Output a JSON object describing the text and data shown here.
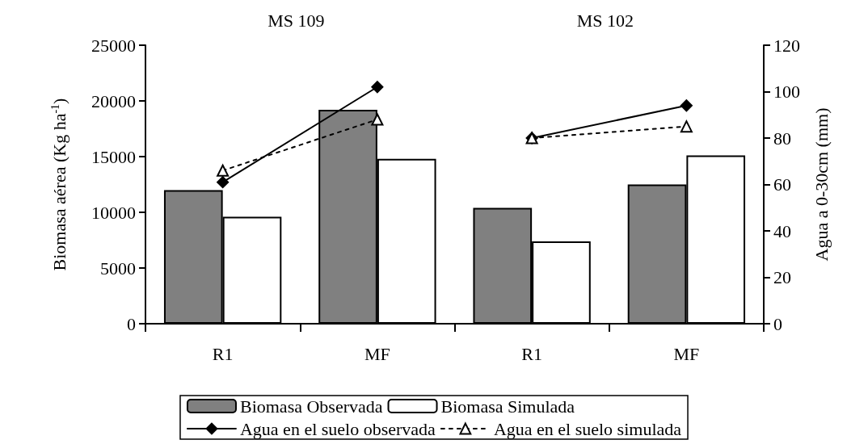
{
  "chart_data": {
    "type": "bar",
    "ylabel": "Biomasa aérea (Kg ha$^{-1}$)",
    "y2label": "Agua a 0-30cm (mm)",
    "annotations": [
      "MS 109",
      "MS 102"
    ],
    "categories": [
      "R1",
      "MF",
      "R1",
      "MF"
    ],
    "series": [
      {
        "name": "Biomasa Observada",
        "type": "bar",
        "color": "#808080",
        "values": [
          12000,
          19200,
          10400,
          12500
        ]
      },
      {
        "name": "Biomasa Simulada",
        "type": "bar",
        "color": "#ffffff",
        "values": [
          9600,
          14800,
          7400,
          15100
        ]
      },
      {
        "name": "Agua en el suelo observada",
        "type": "line",
        "axis": "y2",
        "color": "#000000",
        "marker": "diamond",
        "line_style": "solid",
        "values": [
          61,
          102,
          null,
          null
        ]
      },
      {
        "type": "line",
        "axis": "y2",
        "color": "#000000",
        "marker": "diamond",
        "line_style": "solid",
        "values": [
          null,
          null,
          80,
          94
        ]
      },
      {
        "name": "Agua en el suelo simulada",
        "type": "line",
        "axis": "y2",
        "color": "#000000",
        "marker": "triangle",
        "line_style": "dashed",
        "values": [
          66,
          88,
          null,
          null
        ]
      },
      {
        "type": "line",
        "axis": "y2",
        "color": "#000000",
        "marker": "triangle",
        "line_style": "dashed",
        "values": [
          null,
          null,
          80,
          85
        ]
      }
    ],
    "ylim": [
      0,
      25000
    ],
    "yticks": [
      0,
      5000,
      10000,
      15000,
      20000,
      25000
    ],
    "y2lim": [
      0,
      120
    ],
    "y2ticks": [
      0,
      20,
      40,
      60,
      80,
      100,
      120
    ],
    "grid": false,
    "legend": "bottom"
  }
}
